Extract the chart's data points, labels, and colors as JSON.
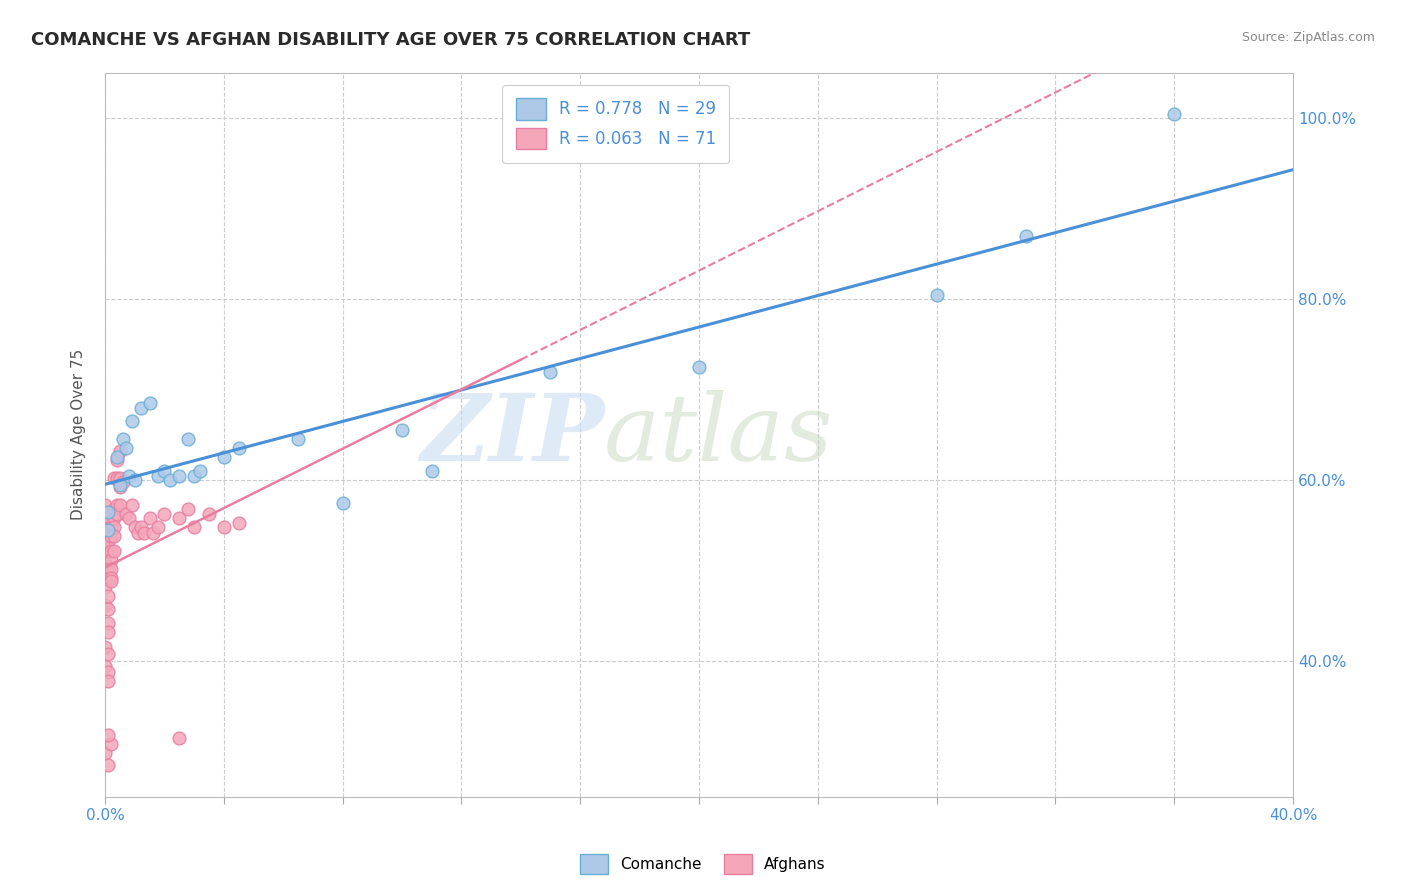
{
  "title": "COMANCHE VS AFGHAN DISABILITY AGE OVER 75 CORRELATION CHART",
  "source": "Source: ZipAtlas.com",
  "ylabel": "Disability Age Over 75",
  "comanche_color": "#aec9e8",
  "comanche_edge": "#6aaed6",
  "afghan_color": "#f4a7b9",
  "afghan_edge": "#e87da0",
  "comanche_line_color": "#4a90d9",
  "afghan_line_color": "#e87da0",
  "comanche_points": [
    [
      0.001,
      0.545
    ],
    [
      0.001,
      0.565
    ],
    [
      0.004,
      0.625
    ],
    [
      0.005,
      0.595
    ],
    [
      0.006,
      0.645
    ],
    [
      0.007,
      0.635
    ],
    [
      0.008,
      0.605
    ],
    [
      0.009,
      0.665
    ],
    [
      0.01,
      0.6
    ],
    [
      0.012,
      0.68
    ],
    [
      0.015,
      0.685
    ],
    [
      0.018,
      0.605
    ],
    [
      0.02,
      0.61
    ],
    [
      0.022,
      0.6
    ],
    [
      0.025,
      0.605
    ],
    [
      0.028,
      0.645
    ],
    [
      0.03,
      0.605
    ],
    [
      0.032,
      0.61
    ],
    [
      0.04,
      0.625
    ],
    [
      0.045,
      0.635
    ],
    [
      0.065,
      0.645
    ],
    [
      0.08,
      0.575
    ],
    [
      0.1,
      0.655
    ],
    [
      0.11,
      0.61
    ],
    [
      0.15,
      0.72
    ],
    [
      0.2,
      0.725
    ],
    [
      0.28,
      0.805
    ],
    [
      0.31,
      0.87
    ],
    [
      0.36,
      1.005
    ]
  ],
  "afghan_points": [
    [
      0.0,
      0.545
    ],
    [
      0.0,
      0.555
    ],
    [
      0.0,
      0.548
    ],
    [
      0.0,
      0.56
    ],
    [
      0.0,
      0.535
    ],
    [
      0.0,
      0.572
    ],
    [
      0.0,
      0.522
    ],
    [
      0.0,
      0.508
    ],
    [
      0.0,
      0.5
    ],
    [
      0.0,
      0.495
    ],
    [
      0.0,
      0.482
    ],
    [
      0.0,
      0.462
    ],
    [
      0.001,
      0.552
    ],
    [
      0.001,
      0.547
    ],
    [
      0.001,
      0.538
    ],
    [
      0.001,
      0.522
    ],
    [
      0.001,
      0.532
    ],
    [
      0.001,
      0.502
    ],
    [
      0.001,
      0.492
    ],
    [
      0.001,
      0.472
    ],
    [
      0.001,
      0.458
    ],
    [
      0.001,
      0.442
    ],
    [
      0.001,
      0.432
    ],
    [
      0.002,
      0.548
    ],
    [
      0.002,
      0.538
    ],
    [
      0.002,
      0.522
    ],
    [
      0.002,
      0.512
    ],
    [
      0.002,
      0.502
    ],
    [
      0.002,
      0.492
    ],
    [
      0.002,
      0.488
    ],
    [
      0.003,
      0.602
    ],
    [
      0.003,
      0.568
    ],
    [
      0.003,
      0.558
    ],
    [
      0.003,
      0.548
    ],
    [
      0.003,
      0.538
    ],
    [
      0.003,
      0.522
    ],
    [
      0.004,
      0.622
    ],
    [
      0.004,
      0.602
    ],
    [
      0.004,
      0.572
    ],
    [
      0.004,
      0.562
    ],
    [
      0.005,
      0.632
    ],
    [
      0.005,
      0.602
    ],
    [
      0.005,
      0.592
    ],
    [
      0.005,
      0.572
    ],
    [
      0.006,
      0.598
    ],
    [
      0.007,
      0.562
    ],
    [
      0.008,
      0.558
    ],
    [
      0.009,
      0.572
    ],
    [
      0.01,
      0.548
    ],
    [
      0.011,
      0.542
    ],
    [
      0.012,
      0.548
    ],
    [
      0.013,
      0.542
    ],
    [
      0.015,
      0.558
    ],
    [
      0.016,
      0.542
    ],
    [
      0.018,
      0.548
    ],
    [
      0.02,
      0.562
    ],
    [
      0.025,
      0.558
    ],
    [
      0.028,
      0.568
    ],
    [
      0.03,
      0.548
    ],
    [
      0.035,
      0.562
    ],
    [
      0.04,
      0.548
    ],
    [
      0.045,
      0.552
    ],
    [
      0.0,
      0.415
    ],
    [
      0.0,
      0.395
    ],
    [
      0.001,
      0.408
    ],
    [
      0.001,
      0.388
    ],
    [
      0.001,
      0.378
    ],
    [
      0.0,
      0.298
    ],
    [
      0.001,
      0.285
    ],
    [
      0.002,
      0.308
    ],
    [
      0.001,
      0.318
    ],
    [
      0.025,
      0.315
    ]
  ],
  "xlim": [
    0.0,
    0.4
  ],
  "ylim": [
    0.25,
    1.05
  ],
  "ytick_vals": [
    0.4,
    0.6,
    0.8,
    1.0
  ],
  "ytick_labels": [
    "40.0%",
    "60.0%",
    "80.0%",
    "100.0%"
  ],
  "xtick_vals": [
    0.0,
    0.04,
    0.08,
    0.12,
    0.16,
    0.2,
    0.24,
    0.28,
    0.32,
    0.36,
    0.4
  ],
  "xtick_show": {
    "0.0": "0.0%",
    "0.4": "40.0%"
  }
}
